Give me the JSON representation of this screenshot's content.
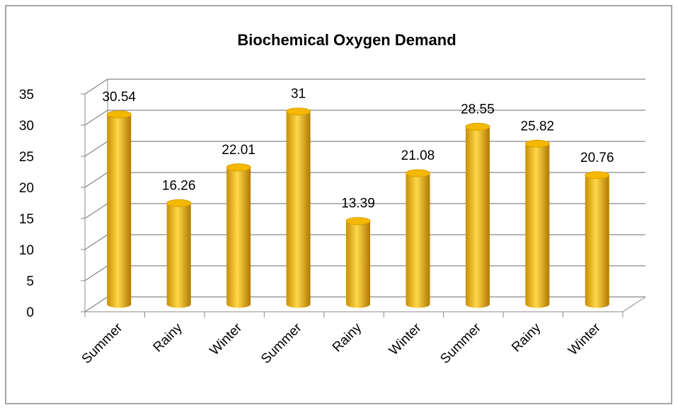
{
  "chart_data": {
    "type": "bar",
    "title": "Biochemical Oxygen Demand",
    "categories": [
      "Summer",
      "Rainy",
      "Winter",
      "Summer",
      "Rainy",
      "Winter",
      "Summer",
      "Rainy",
      "Winter"
    ],
    "values": [
      30.54,
      16.26,
      22.01,
      31,
      13.39,
      21.08,
      28.55,
      25.82,
      20.76
    ],
    "color": "#f5b800",
    "ylim": [
      0,
      35
    ],
    "yticks": [
      0,
      5,
      10,
      15,
      20,
      25,
      30,
      35
    ],
    "grid": true
  }
}
